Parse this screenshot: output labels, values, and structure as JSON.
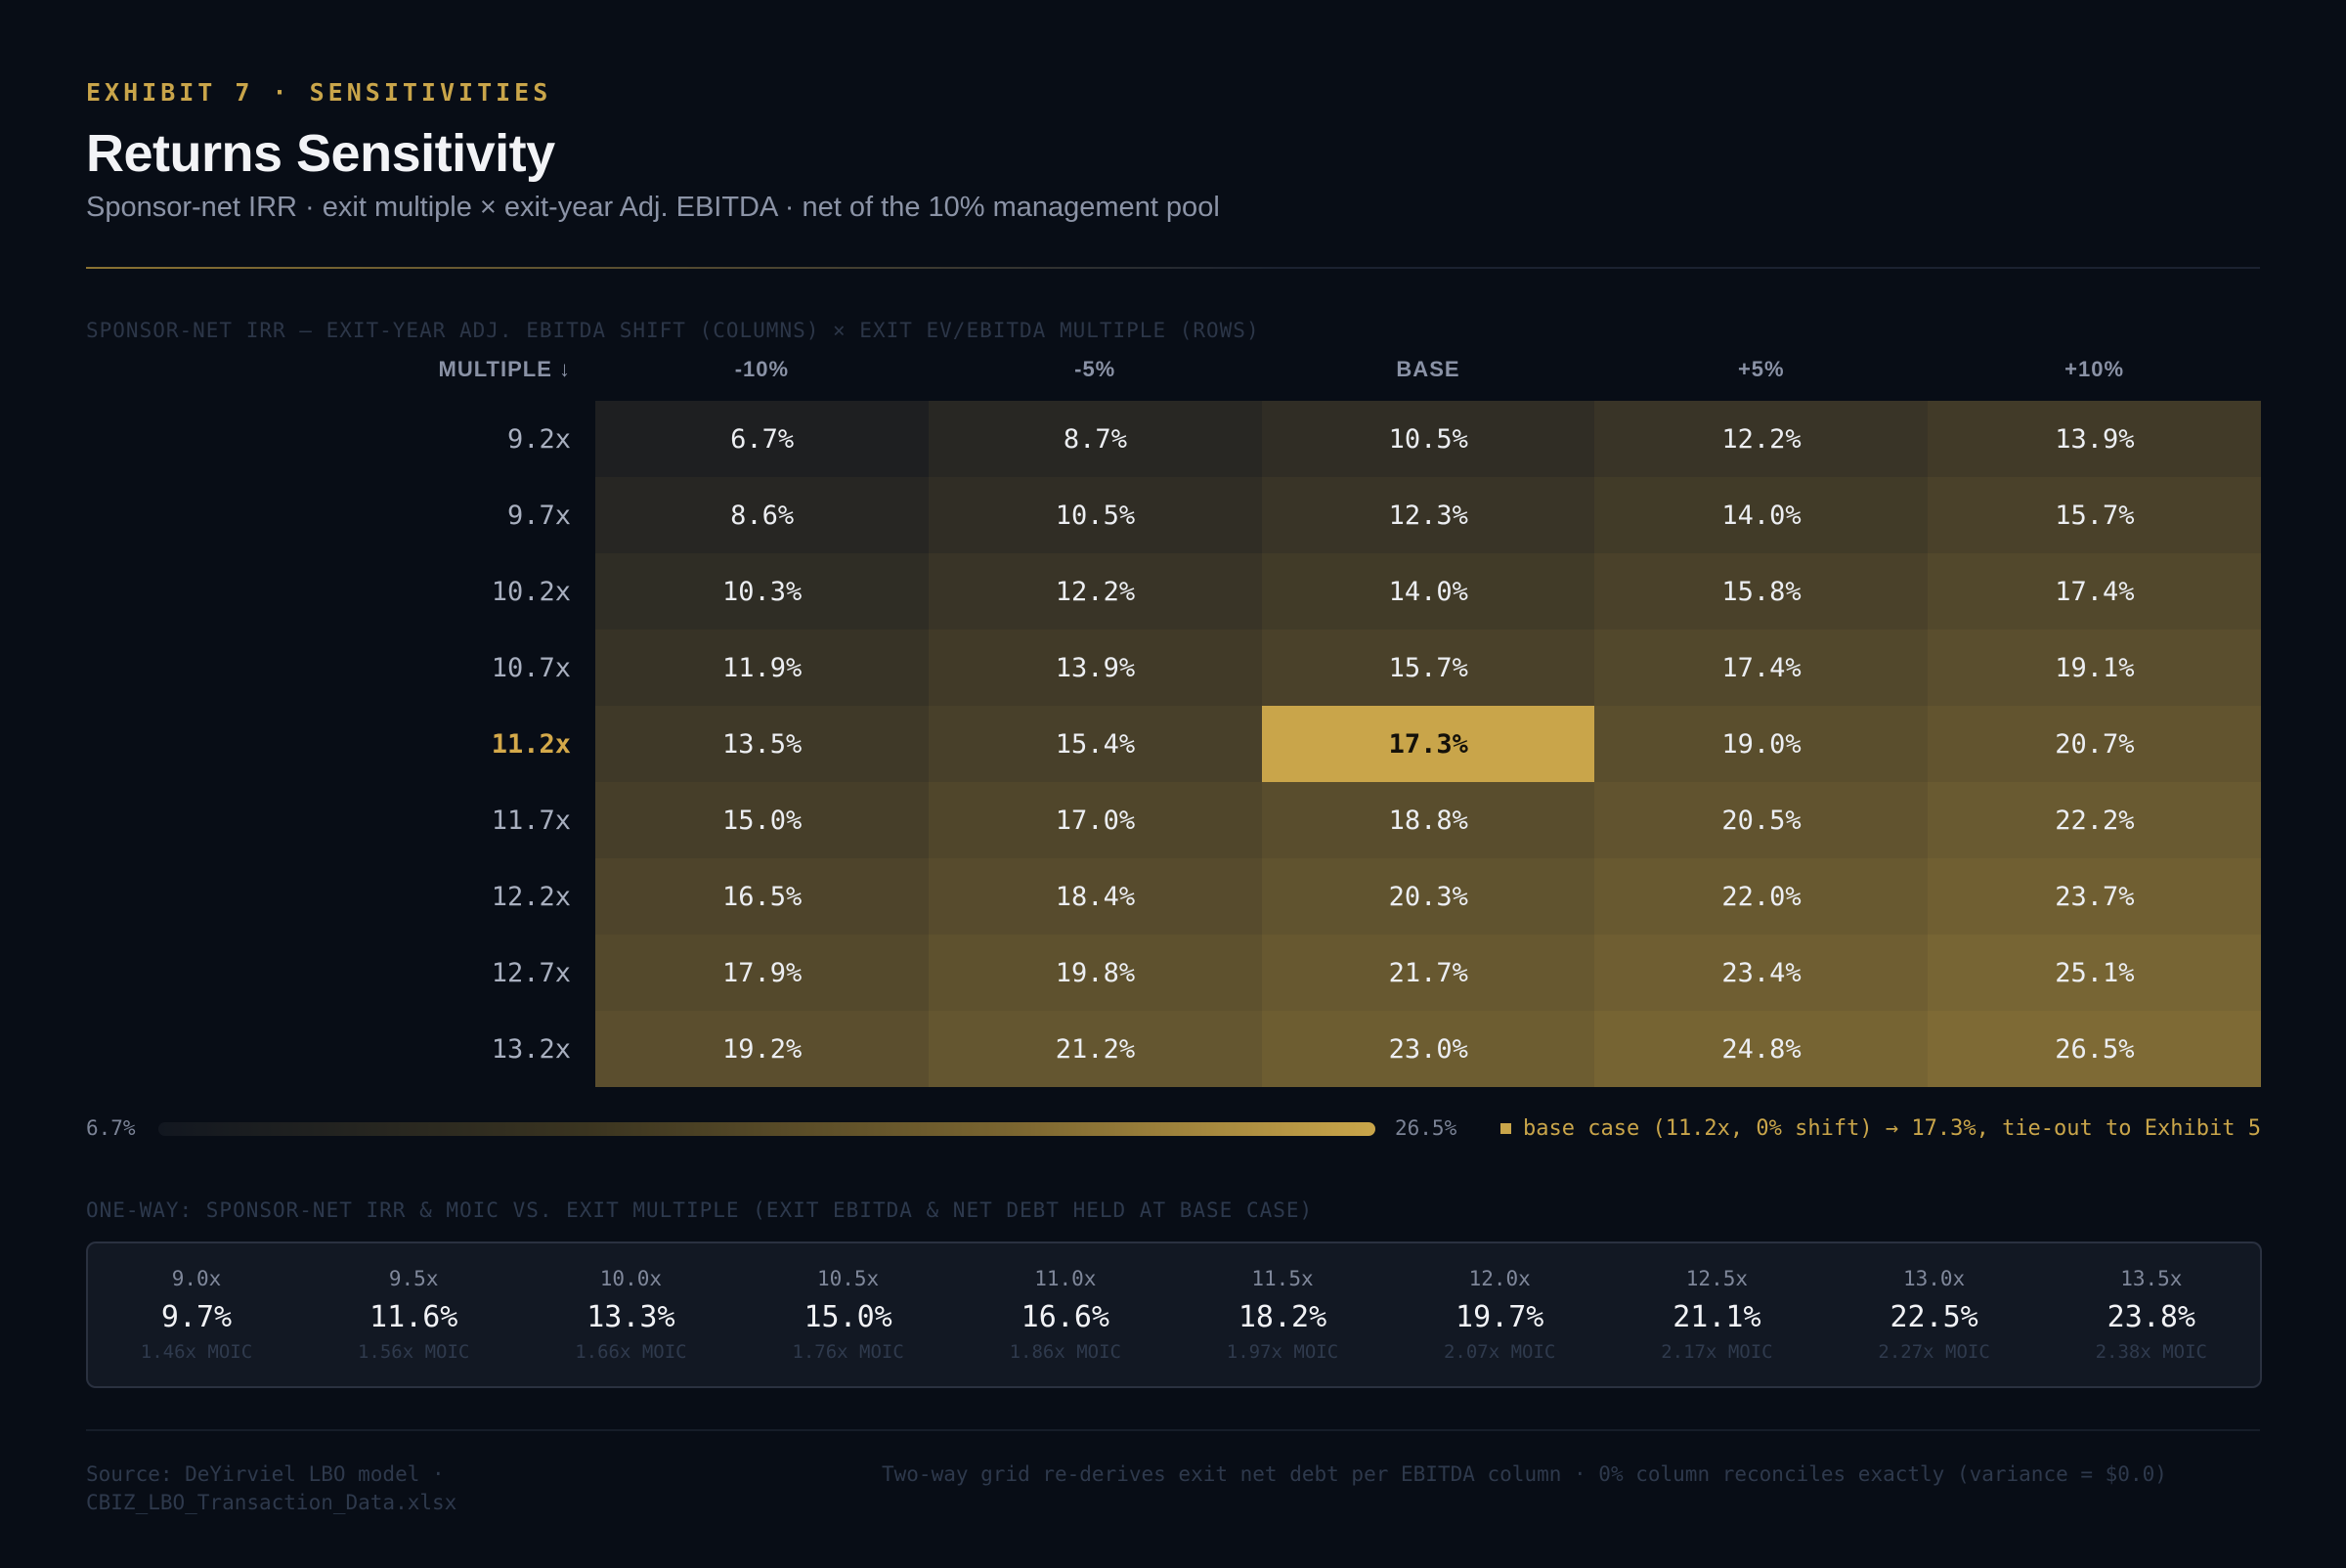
{
  "header": {
    "eyebrow": "EXHIBIT 7 · SENSITIVITIES",
    "title": "Returns Sensitivity",
    "subtitle": "Sponsor-net IRR · exit multiple × exit-year Adj. EBITDA · net of the 10% management pool"
  },
  "grid": {
    "caption": "SPONSOR-NET IRR  —  EXIT-YEAR ADJ. EBITDA SHIFT (COLUMNS) × EXIT EV/EBITDA MULTIPLE (ROWS)",
    "row_header": "MULTIPLE ↓",
    "base_row_index": 4,
    "base_col_index": 2
  },
  "legend": {
    "min_label": "6.7%",
    "max_label": "26.5%",
    "note": "base case (11.2x, 0% shift) → 17.3%, tie-out to Exhibit 5"
  },
  "chart_data": [
    {
      "type": "heatmap",
      "columns": [
        "-10%",
        "-5%",
        "BASE",
        "+5%",
        "+10%"
      ],
      "rows": [
        "9.2x",
        "9.7x",
        "10.2x",
        "10.7x",
        "11.2x",
        "11.7x",
        "12.2x",
        "12.7x",
        "13.2x"
      ],
      "values": [
        [
          6.7,
          8.7,
          10.5,
          12.2,
          13.9
        ],
        [
          8.6,
          10.5,
          12.3,
          14.0,
          15.7
        ],
        [
          10.3,
          12.2,
          14.0,
          15.8,
          17.4
        ],
        [
          11.9,
          13.9,
          15.7,
          17.4,
          19.1
        ],
        [
          13.5,
          15.4,
          17.3,
          19.0,
          20.7
        ],
        [
          15.0,
          17.0,
          18.8,
          20.5,
          22.2
        ],
        [
          16.5,
          18.4,
          20.3,
          22.0,
          23.7
        ],
        [
          17.9,
          19.8,
          21.7,
          23.4,
          25.1
        ],
        [
          19.2,
          21.2,
          23.0,
          24.8,
          26.5
        ]
      ],
      "value_format": "%",
      "colorscale": [
        "#1e1f21",
        "#7e6a35"
      ],
      "base_highlight_color": "#c9a54a",
      "min": 6.7,
      "max": 26.5
    },
    {
      "type": "table",
      "caption": "ONE-WAY: SPONSOR-NET IRR & MOIC VS. EXIT MULTIPLE (EXIT EBITDA & NET DEBT HELD AT BASE CASE)",
      "multiples": [
        "9.0x",
        "9.5x",
        "10.0x",
        "10.5x",
        "11.0x",
        "11.5x",
        "12.0x",
        "12.5x",
        "13.0x",
        "13.5x"
      ],
      "irr": [
        "9.7%",
        "11.6%",
        "13.3%",
        "15.0%",
        "16.6%",
        "18.2%",
        "19.7%",
        "21.1%",
        "22.5%",
        "23.8%"
      ],
      "moic": [
        "1.46x MOIC",
        "1.56x MOIC",
        "1.66x MOIC",
        "1.76x MOIC",
        "1.86x MOIC",
        "1.97x MOIC",
        "2.07x MOIC",
        "2.17x MOIC",
        "2.27x MOIC",
        "2.38x MOIC"
      ]
    }
  ],
  "footer": {
    "source": "Source: DeYirviel LBO model · CBIZ_LBO_Transaction_Data.xlsx",
    "note": "Two-way grid re-derives exit net debt per EBITDA column · 0% column reconciles exactly (variance = $0.0)"
  }
}
